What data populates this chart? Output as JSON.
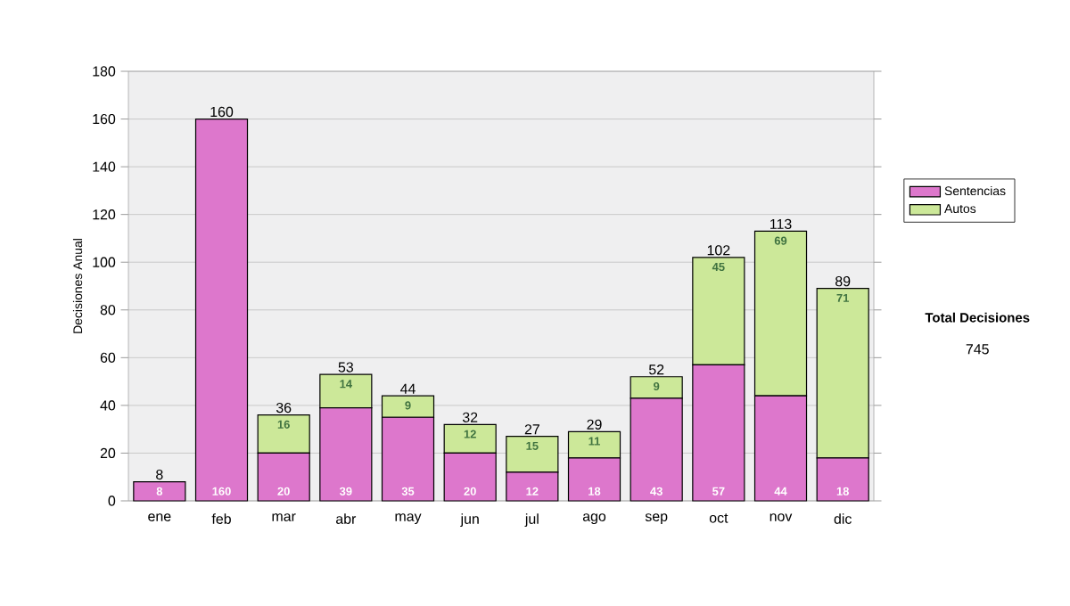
{
  "chart_data": {
    "type": "bar",
    "stacked": true,
    "ylabel": "Decisiones Anual",
    "categories": [
      "ene",
      "feb",
      "mar",
      "abr",
      "may",
      "jun",
      "jul",
      "ago",
      "sep",
      "oct",
      "nov",
      "dic"
    ],
    "series": [
      {
        "name": "Sentencias",
        "color": "#dd77cc",
        "values": [
          8,
          160,
          20,
          39,
          35,
          20,
          12,
          18,
          43,
          57,
          44,
          18
        ],
        "value_labels": [
          "8",
          "160",
          "20",
          "39",
          "35",
          "20",
          "12",
          "18",
          "43",
          "57",
          "44",
          "18"
        ]
      },
      {
        "name": "Autos",
        "color": "#cce899",
        "values": [
          0,
          0,
          16,
          14,
          9,
          12,
          15,
          11,
          9,
          45,
          69,
          71
        ],
        "value_labels": [
          null,
          null,
          "16",
          "14",
          "9",
          "12",
          "15",
          "11",
          "9",
          "45",
          "69",
          "71"
        ]
      }
    ],
    "totals": [
      "8",
      "160",
      "36",
      "53",
      "44",
      "32",
      "27",
      "29",
      "52",
      "102",
      "113",
      "89"
    ],
    "ylim": [
      0,
      180
    ],
    "yticks": [
      0,
      20,
      40,
      60,
      80,
      100,
      120,
      140,
      160,
      180
    ],
    "grid": "y",
    "legend": "right",
    "annotations": [
      "Total Decisiones",
      "745"
    ]
  }
}
